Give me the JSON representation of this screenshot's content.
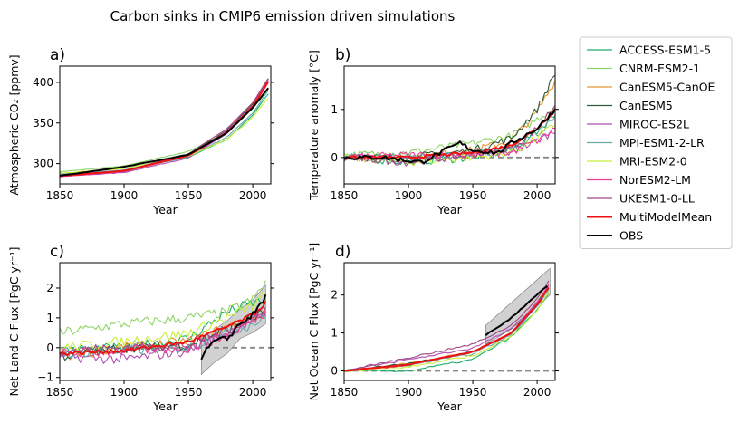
{
  "figure": {
    "title": "Carbon sinks in CMIP6 emission driven simulations"
  },
  "legend": {
    "placement": "outside-right",
    "entries": [
      {
        "name": "ACCESS-ESM1-5",
        "color": "#1bb06a"
      },
      {
        "name": "CNRM-ESM2-1",
        "color": "#8fd466"
      },
      {
        "name": "CanESM5-CanOE",
        "color": "#e8962d"
      },
      {
        "name": "CanESM5",
        "color": "#2f5a3c"
      },
      {
        "name": "MIROC-ES2L",
        "color": "#b04fb0"
      },
      {
        "name": "MPI-ESM1-2-LR",
        "color": "#66a8a8"
      },
      {
        "name": "MRI-ESM2-0",
        "color": "#c7ef3a"
      },
      {
        "name": "NorESM2-LM",
        "color": "#ef3e96"
      },
      {
        "name": "UKESM1-0-LL",
        "color": "#a04686"
      },
      {
        "name": "MultiModelMean",
        "color": "#ee1111"
      },
      {
        "name": "OBS",
        "color": "#000000"
      }
    ]
  },
  "chart_data": [
    {
      "panel_label": "a)",
      "type": "line",
      "xlabel": "Year",
      "ylabel": "Atmospheric CO₂ [ppmv]",
      "xlim": [
        1850,
        2014
      ],
      "ylim": [
        275,
        420
      ],
      "xticks": [
        1850,
        1900,
        1950,
        2000
      ],
      "yticks": [
        300,
        350,
        400
      ],
      "xtick_labels": [
        "1850",
        "1900",
        "1950",
        "2000"
      ],
      "ytick_labels": [
        "300",
        "350",
        "400"
      ],
      "zero_line": false,
      "series": [
        {
          "name": "ACCESS-ESM1-5",
          "x": [
            1850,
            1900,
            1950,
            1980,
            2000,
            2014
          ],
          "y": [
            284,
            292,
            308,
            330,
            360,
            390
          ]
        },
        {
          "name": "CNRM-ESM2-1",
          "x": [
            1850,
            1900,
            1950,
            1980,
            2000,
            2014
          ],
          "y": [
            290,
            297,
            315,
            338,
            368,
            395
          ]
        },
        {
          "name": "CanESM5-CanOE",
          "x": [
            1850,
            1900,
            1950,
            1980,
            2000,
            2014
          ],
          "y": [
            284,
            290,
            310,
            340,
            372,
            410
          ]
        },
        {
          "name": "CanESM5",
          "x": [
            1850,
            1900,
            1950,
            1980,
            2000,
            2014
          ],
          "y": [
            284,
            290,
            311,
            341,
            374,
            410
          ]
        },
        {
          "name": "MIROC-ES2L",
          "x": [
            1850,
            1900,
            1950,
            1980,
            2000,
            2014
          ],
          "y": [
            284,
            289,
            307,
            337,
            370,
            408
          ]
        },
        {
          "name": "MPI-ESM1-2-LR",
          "x": [
            1850,
            1900,
            1950,
            1980,
            2000,
            2014
          ],
          "y": [
            287,
            292,
            308,
            333,
            362,
            395
          ]
        },
        {
          "name": "MRI-ESM2-0",
          "x": [
            1850,
            1900,
            1950,
            1980,
            2000,
            2014
          ],
          "y": [
            288,
            294,
            309,
            330,
            357,
            385
          ]
        },
        {
          "name": "NorESM2-LM",
          "x": [
            1850,
            1900,
            1950,
            1980,
            2000,
            2014
          ],
          "y": [
            284,
            290,
            310,
            340,
            372,
            408
          ]
        },
        {
          "name": "UKESM1-0-LL",
          "x": [
            1850,
            1900,
            1950,
            1980,
            2000,
            2014
          ],
          "y": [
            285,
            291,
            312,
            343,
            375,
            410
          ]
        },
        {
          "name": "MultiModelMean",
          "x": [
            1850,
            1900,
            1950,
            1980,
            2000,
            2014
          ],
          "y": [
            285,
            291,
            310,
            338,
            370,
            406
          ]
        },
        {
          "name": "OBS",
          "x": [
            1850,
            1900,
            1950,
            1980,
            2000,
            2014
          ],
          "y": [
            285,
            296,
            311,
            338,
            369,
            397
          ]
        }
      ]
    },
    {
      "panel_label": "b)",
      "type": "line",
      "xlabel": "Year",
      "ylabel": "Temperature anomaly [°C]",
      "xlim": [
        1850,
        2014
      ],
      "ylim": [
        -0.55,
        1.9
      ],
      "xticks": [
        1850,
        1900,
        1950,
        2000
      ],
      "yticks": [
        0,
        1
      ],
      "xtick_labels": [
        "1850",
        "1900",
        "1950",
        "2000"
      ],
      "ytick_labels": [
        "0",
        "1"
      ],
      "zero_line": true,
      "series": [
        {
          "name": "ACCESS-ESM1-5",
          "x": [
            1850,
            1900,
            1950,
            1980,
            2000,
            2014
          ],
          "y": [
            0.0,
            -0.1,
            0.0,
            0.15,
            0.55,
            0.9
          ]
        },
        {
          "name": "CNRM-ESM2-1",
          "x": [
            1850,
            1900,
            1950,
            1980,
            2000,
            2014
          ],
          "y": [
            0.05,
            0.1,
            0.3,
            0.45,
            0.8,
            1.05
          ]
        },
        {
          "name": "CanESM5-CanOE",
          "x": [
            1850,
            1900,
            1950,
            1980,
            2000,
            2014
          ],
          "y": [
            0.0,
            0.0,
            0.15,
            0.35,
            0.95,
            1.6
          ]
        },
        {
          "name": "CanESM5",
          "x": [
            1850,
            1900,
            1950,
            1980,
            2000,
            2014
          ],
          "y": [
            0.0,
            0.0,
            0.15,
            0.4,
            1.0,
            1.75
          ]
        },
        {
          "name": "MIROC-ES2L",
          "x": [
            1850,
            1900,
            1950,
            1980,
            2000,
            2014
          ],
          "y": [
            0.0,
            -0.05,
            0.05,
            0.1,
            0.35,
            0.55
          ]
        },
        {
          "name": "MPI-ESM1-2-LR",
          "x": [
            1850,
            1900,
            1950,
            1980,
            2000,
            2014
          ],
          "y": [
            0.0,
            0.0,
            0.05,
            0.2,
            0.5,
            0.8
          ]
        },
        {
          "name": "MRI-ESM2-0",
          "x": [
            1850,
            1900,
            1950,
            1980,
            2000,
            2014
          ],
          "y": [
            0.0,
            -0.1,
            0.0,
            0.1,
            0.4,
            0.7
          ]
        },
        {
          "name": "NorESM2-LM",
          "x": [
            1850,
            1900,
            1950,
            1980,
            2000,
            2014
          ],
          "y": [
            0.0,
            0.05,
            0.05,
            0.1,
            0.35,
            0.6
          ]
        },
        {
          "name": "UKESM1-0-LL",
          "x": [
            1850,
            1900,
            1950,
            1980,
            2000,
            2014
          ],
          "y": [
            0.0,
            -0.1,
            0.05,
            0.2,
            0.6,
            1.1
          ]
        },
        {
          "name": "MultiModelMean",
          "x": [
            1850,
            1900,
            1950,
            1980,
            2000,
            2014
          ],
          "y": [
            0.0,
            0.0,
            0.1,
            0.25,
            0.6,
            1.0
          ]
        },
        {
          "name": "OBS",
          "x": [
            1850,
            1880,
            1910,
            1940,
            1950,
            1970,
            1980,
            2000,
            2014
          ],
          "y": [
            0.0,
            0.0,
            -0.1,
            0.3,
            0.15,
            0.1,
            0.3,
            0.6,
            1.0
          ]
        }
      ]
    },
    {
      "panel_label": "c)",
      "type": "line",
      "xlabel": "Year",
      "ylabel": "Net Land C Flux [PgC yr⁻¹]",
      "xlim": [
        1850,
        2014
      ],
      "ylim": [
        -1.1,
        2.85
      ],
      "xticks": [
        1850,
        1900,
        1950,
        2000
      ],
      "yticks": [
        -1,
        0,
        1,
        2
      ],
      "xtick_labels": [
        "1850",
        "1900",
        "1950",
        "2000"
      ],
      "ytick_labels": [
        "−1",
        "0",
        "1",
        "2"
      ],
      "zero_line": true,
      "obs_band": {
        "x": [
          1960,
          1970,
          1980,
          1990,
          2000,
          2010
        ],
        "low": [
          -0.9,
          -0.5,
          -0.2,
          0.3,
          0.5,
          0.8
        ],
        "high": [
          0.3,
          0.6,
          0.9,
          1.3,
          1.6,
          2.1
        ]
      },
      "series": [
        {
          "name": "ACCESS-ESM1-5",
          "x": [
            1850,
            1900,
            1950,
            1980,
            2000,
            2010
          ],
          "y": [
            -0.1,
            0.0,
            0.3,
            1.2,
            1.5,
            1.6
          ]
        },
        {
          "name": "CNRM-ESM2-1",
          "x": [
            1850,
            1900,
            1950,
            1980,
            2000,
            2010
          ],
          "y": [
            0.5,
            0.8,
            1.0,
            1.2,
            1.6,
            2.2
          ]
        },
        {
          "name": "CanESM5-CanOE",
          "x": [
            1850,
            1900,
            1950,
            1980,
            2000,
            2010
          ],
          "y": [
            -0.3,
            0.0,
            0.2,
            0.7,
            1.0,
            1.2
          ]
        },
        {
          "name": "CanESM5",
          "x": [
            1850,
            1900,
            1950,
            1980,
            2000,
            2010
          ],
          "y": [
            -0.3,
            0.0,
            0.1,
            0.6,
            1.0,
            1.2
          ]
        },
        {
          "name": "MIROC-ES2L",
          "x": [
            1850,
            1900,
            1950,
            1980,
            2000,
            2010
          ],
          "y": [
            -0.3,
            -0.4,
            -0.1,
            0.5,
            0.9,
            1.1
          ]
        },
        {
          "name": "MPI-ESM1-2-LR",
          "x": [
            1850,
            1900,
            1950,
            1980,
            2000,
            2010
          ],
          "y": [
            -0.2,
            -0.1,
            0.0,
            0.5,
            0.8,
            1.0
          ]
        },
        {
          "name": "MRI-ESM2-0",
          "x": [
            1850,
            1900,
            1950,
            1980,
            2000,
            2010
          ],
          "y": [
            0.0,
            0.2,
            0.5,
            1.0,
            1.4,
            1.8
          ]
        },
        {
          "name": "NorESM2-LM",
          "x": [
            1850,
            1900,
            1950,
            1980,
            2000,
            2010
          ],
          "y": [
            -0.2,
            -0.1,
            0.0,
            0.4,
            0.9,
            1.2
          ]
        },
        {
          "name": "UKESM1-0-LL",
          "x": [
            1850,
            1900,
            1950,
            1980,
            2000,
            2010
          ],
          "y": [
            -0.1,
            0.0,
            0.1,
            0.6,
            1.0,
            1.3
          ]
        },
        {
          "name": "MultiModelMean",
          "x": [
            1850,
            1900,
            1950,
            1980,
            2000,
            2010
          ],
          "y": [
            -0.2,
            -0.1,
            0.2,
            0.7,
            1.1,
            1.5
          ]
        },
        {
          "name": "OBS",
          "x": [
            1960,
            1970,
            1980,
            1990,
            2000,
            2010
          ],
          "y": [
            -0.3,
            0.2,
            0.3,
            0.8,
            1.1,
            1.7
          ]
        }
      ]
    },
    {
      "panel_label": "d)",
      "type": "line",
      "xlabel": "Year",
      "ylabel": "Net Ocean C Flux [PgC yr⁻¹]",
      "xlim": [
        1850,
        2014
      ],
      "ylim": [
        -0.25,
        2.85
      ],
      "xticks": [
        1850,
        1900,
        1950,
        2000
      ],
      "yticks": [
        0,
        1,
        2
      ],
      "xtick_labels": [
        "1850",
        "1900",
        "1950",
        "2000"
      ],
      "ytick_labels": [
        "0",
        "1",
        "2"
      ],
      "zero_line": true,
      "obs_band": {
        "x": [
          1960,
          1970,
          1980,
          1990,
          2000,
          2010
        ],
        "low": [
          0.7,
          0.9,
          1.1,
          1.4,
          1.7,
          2.0
        ],
        "high": [
          1.2,
          1.5,
          1.8,
          2.1,
          2.4,
          2.7
        ]
      },
      "series": [
        {
          "name": "ACCESS-ESM1-5",
          "x": [
            1850,
            1900,
            1950,
            1980,
            2000,
            2010
          ],
          "y": [
            0.0,
            0.0,
            0.3,
            0.9,
            1.6,
            2.1
          ]
        },
        {
          "name": "CNRM-ESM2-1",
          "x": [
            1850,
            1900,
            1950,
            1980,
            2000,
            2010
          ],
          "y": [
            0.0,
            0.15,
            0.5,
            1.0,
            1.7,
            2.2
          ]
        },
        {
          "name": "CanESM5-CanOE",
          "x": [
            1850,
            1900,
            1950,
            1980,
            2000,
            2010
          ],
          "y": [
            0.0,
            0.2,
            0.5,
            1.0,
            1.8,
            2.3
          ]
        },
        {
          "name": "CanESM5",
          "x": [
            1850,
            1900,
            1950,
            1980,
            2000,
            2010
          ],
          "y": [
            0.0,
            0.2,
            0.5,
            1.0,
            1.8,
            2.3
          ]
        },
        {
          "name": "MIROC-ES2L",
          "x": [
            1850,
            1900,
            1950,
            1980,
            2000,
            2010
          ],
          "y": [
            0.0,
            0.3,
            0.6,
            1.1,
            1.8,
            2.3
          ]
        },
        {
          "name": "MPI-ESM1-2-LR",
          "x": [
            1850,
            1900,
            1950,
            1980,
            2000,
            2010
          ],
          "y": [
            0.0,
            0.15,
            0.45,
            0.95,
            1.7,
            2.2
          ]
        },
        {
          "name": "MRI-ESM2-0",
          "x": [
            1850,
            1900,
            1950,
            1980,
            2000,
            2010
          ],
          "y": [
            0.0,
            0.1,
            0.4,
            0.9,
            1.6,
            2.1
          ]
        },
        {
          "name": "NorESM2-LM",
          "x": [
            1850,
            1900,
            1950,
            1980,
            2000,
            2010
          ],
          "y": [
            0.0,
            0.15,
            0.5,
            1.0,
            1.8,
            2.3
          ]
        },
        {
          "name": "UKESM1-0-LL",
          "x": [
            1850,
            1900,
            1950,
            1980,
            2000,
            2010
          ],
          "y": [
            0.0,
            0.35,
            0.7,
            1.2,
            1.9,
            2.4
          ]
        },
        {
          "name": "MultiModelMean",
          "x": [
            1850,
            1900,
            1950,
            1980,
            2000,
            2010
          ],
          "y": [
            0.0,
            0.17,
            0.5,
            1.0,
            1.75,
            2.25
          ]
        },
        {
          "name": "OBS",
          "x": [
            1960,
            1970,
            1980,
            1990,
            2000,
            2010
          ],
          "y": [
            0.95,
            1.15,
            1.4,
            1.7,
            2.0,
            2.3
          ]
        }
      ]
    }
  ]
}
